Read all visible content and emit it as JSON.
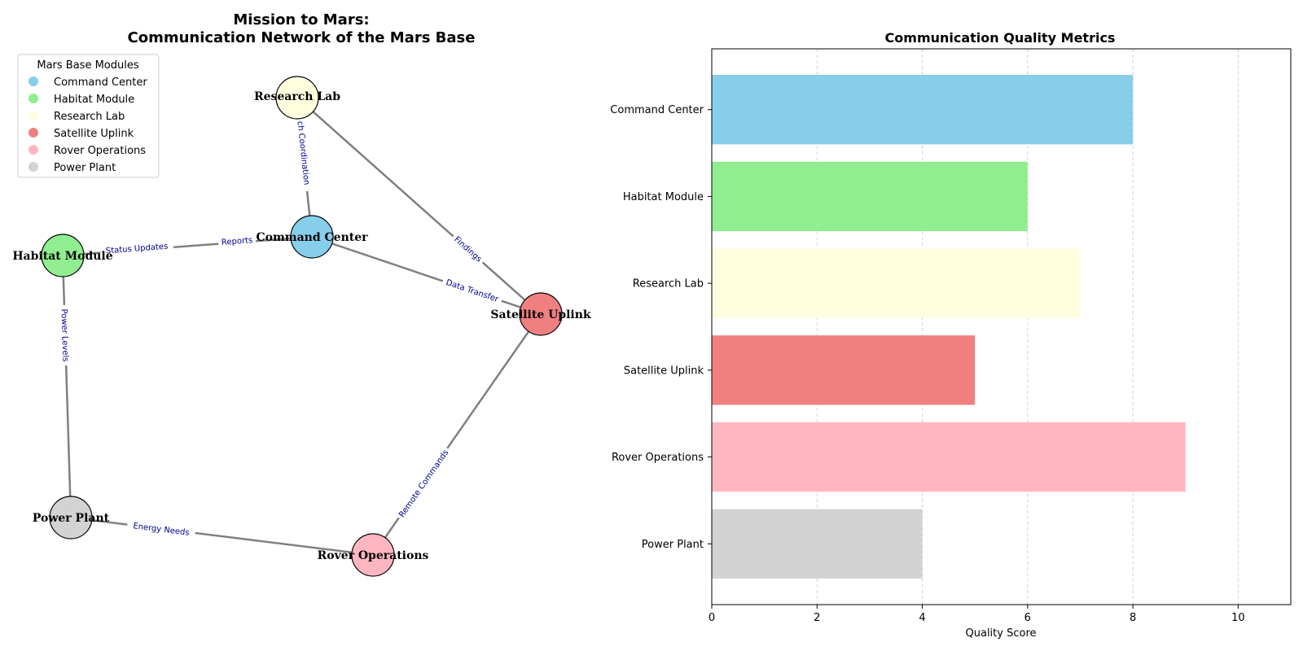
{
  "chart_data": [
    {
      "type": "network",
      "title": "Mission to Mars:\nCommunication Network of the Mars Base",
      "title_lines": [
        "Mission to Mars:",
        "Communication Network of the Mars Base"
      ],
      "legend": {
        "title": "Mars Base Modules",
        "placement": "top-left",
        "entries": [
          {
            "label": "Command Center",
            "color": "#87ceeb"
          },
          {
            "label": "Habitat Module",
            "color": "#90ee90"
          },
          {
            "label": "Research Lab",
            "color": "#ffffe0"
          },
          {
            "label": "Satellite Uplink",
            "color": "#f08080"
          },
          {
            "label": "Rover Operations",
            "color": "#ffb6c1"
          },
          {
            "label": "Power Plant",
            "color": "#d3d3d3"
          }
        ]
      },
      "nodes": [
        {
          "id": "Command Center",
          "color": "#87ceeb"
        },
        {
          "id": "Habitat Module",
          "color": "#90ee90"
        },
        {
          "id": "Research Lab",
          "color": "#ffffe0"
        },
        {
          "id": "Satellite Uplink",
          "color": "#f08080"
        },
        {
          "id": "Rover Operations",
          "color": "#ffb6c1"
        },
        {
          "id": "Power Plant",
          "color": "#d3d3d3"
        }
      ],
      "edges": [
        {
          "source": "Command Center",
          "target": "Habitat Module",
          "labels": [
            "Status Updates",
            "Reports"
          ]
        },
        {
          "source": "Command Center",
          "target": "Research Lab",
          "labels": [
            "ch Coordination"
          ]
        },
        {
          "source": "Command Center",
          "target": "Satellite Uplink",
          "labels": [
            "Data Transfer"
          ]
        },
        {
          "source": "Research Lab",
          "target": "Satellite Uplink",
          "labels": [
            "Findings"
          ]
        },
        {
          "source": "Habitat Module",
          "target": "Power Plant",
          "labels": [
            "Power Levels"
          ]
        },
        {
          "source": "Power Plant",
          "target": "Rover Operations",
          "labels": [
            "Energy Needs"
          ]
        },
        {
          "source": "Rover Operations",
          "target": "Satellite Uplink",
          "labels": [
            "Remote Commands"
          ]
        }
      ]
    },
    {
      "type": "bar",
      "orientation": "horizontal",
      "title": "Communication Quality Metrics",
      "categories": [
        "Command Center",
        "Habitat Module",
        "Research Lab",
        "Satellite Uplink",
        "Rover Operations",
        "Power Plant"
      ],
      "values": [
        8,
        6,
        7,
        5,
        9,
        4
      ],
      "colors": [
        "#87ceeb",
        "#90ee90",
        "#ffffe0",
        "#f08080",
        "#ffb6c1",
        "#d3d3d3"
      ],
      "xlabel": "Quality Score",
      "ylabel": "",
      "xlim": [
        0,
        11
      ],
      "xticks": [
        0,
        2,
        4,
        6,
        8,
        10
      ],
      "grid": "x-dashed"
    }
  ]
}
